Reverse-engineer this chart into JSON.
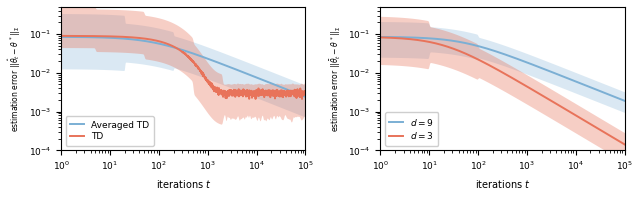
{
  "fig_width": 6.4,
  "fig_height": 1.97,
  "dpi": 100,
  "orange_color": "#E8735A",
  "blue_color": "#7BAFD4",
  "orange_alpha": 0.35,
  "blue_alpha": 0.28,
  "xlabel": "iterations $t$",
  "xlim": [
    1,
    100000
  ],
  "ylim": [
    0.0001,
    0.5
  ],
  "left_legend": [
    "TD",
    "Averaged TD"
  ],
  "right_legend": [
    "$d = 3$",
    "$d = 9$"
  ]
}
